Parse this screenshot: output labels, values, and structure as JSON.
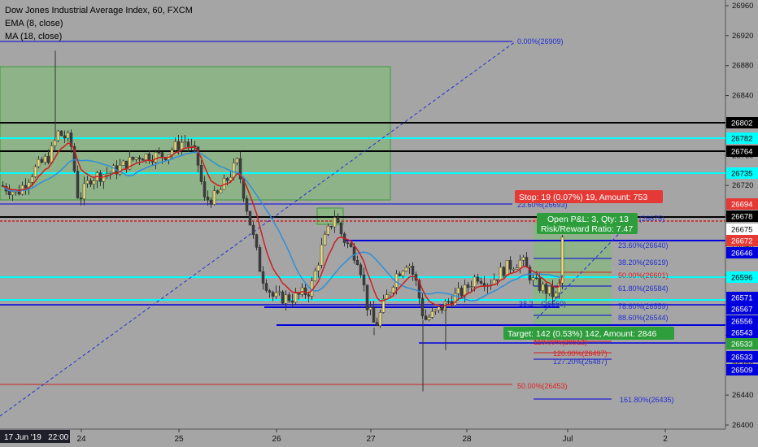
{
  "legend": {
    "title": "Dow Jones Industrial Average Index, 60, FXCM",
    "ema": "EMA (8, close)",
    "ma": "MA (18, close)"
  },
  "axis": {
    "ticks": [
      "26960",
      "26920",
      "26880",
      "26840",
      "26800",
      "26760",
      "26720",
      "26680",
      "26640",
      "26600",
      "26560",
      "26520",
      "26480",
      "26440",
      "26400"
    ],
    "date_ticks": [
      "24",
      "25",
      "26",
      "27",
      "28",
      "Jul",
      "2"
    ],
    "crosshair_date": "17 Jun '19   22:00"
  },
  "price_tags": [
    {
      "label": "26802",
      "style": "black"
    },
    {
      "label": "26782",
      "style": "cyan"
    },
    {
      "label": "26764",
      "style": "black"
    },
    {
      "label": "26735",
      "style": "cyan"
    },
    {
      "label": "26694",
      "style": "red"
    },
    {
      "label": "26678",
      "style": "black"
    },
    {
      "label": "26675",
      "style": "white"
    },
    {
      "label": "26672",
      "style": "red"
    },
    {
      "label": "26646",
      "style": "blue"
    },
    {
      "label": "26596",
      "style": "cyan"
    },
    {
      "label": "26571",
      "style": "blue"
    },
    {
      "label": "26567",
      "style": "blue"
    },
    {
      "label": "26556",
      "style": "blue"
    },
    {
      "label": "26543",
      "style": "blue"
    },
    {
      "label": "26533",
      "style": "green"
    },
    {
      "label": "26533",
      "style": "blue"
    },
    {
      "label": "26509",
      "style": "blue"
    }
  ],
  "fib_labels": [
    {
      "text": "0.00%(26909)",
      "color": "#2030d0"
    },
    {
      "text": "23.60%(26693)",
      "color": "#2030d0"
    },
    {
      "text": "(26675)",
      "color": "#2030d0"
    },
    {
      "text": "23.60%(26640)",
      "color": "#2030d0"
    },
    {
      "text": "38.20%(26619)",
      "color": "#2030d0"
    },
    {
      "text": "50.00%(26601)",
      "color": "#e02020"
    },
    {
      "text": "61.80%(26584)",
      "color": "#2030d0"
    },
    {
      "text": "38.2",
      "color": "#2030d0"
    },
    {
      "text": "(26560)",
      "color": "#2030d0"
    },
    {
      "text": "78.60%(26559)",
      "color": "#2030d0"
    },
    {
      "text": "88.60%(26544)",
      "color": "#2030d0"
    },
    {
      "text": "110.00%(26512)",
      "color": "#e02020"
    },
    {
      "text": "120.00%(26497)",
      "color": "#e02020"
    },
    {
      "text": "127.20%(26487)",
      "color": "#2030d0"
    },
    {
      "text": "50.00%(26453)",
      "color": "#e02020"
    },
    {
      "text": "161.80%(26435)",
      "color": "#2030d0"
    }
  ],
  "position": {
    "stop_label": "Stop: 19 (0.07%) 19, Amount: 753",
    "pnl_label": "Open P&L: 3, Qty: 13",
    "rr_label": "Risk/Reward Ratio: 7.47",
    "target_label": "Target: 142 (0.53%) 142, Amount: 2846"
  },
  "colors": {
    "background": "#a5a5a5",
    "candle_up": "#f0e07a",
    "candle_down": "#3c3c3c",
    "ema": "#cc2020",
    "ma": "#2f8fd8",
    "cyan_line": "#00ffff",
    "blue_line": "#0000dd",
    "zone_green": "#7dbf72",
    "stop_red": "#e53935",
    "target_green": "#2e9e3c"
  }
}
